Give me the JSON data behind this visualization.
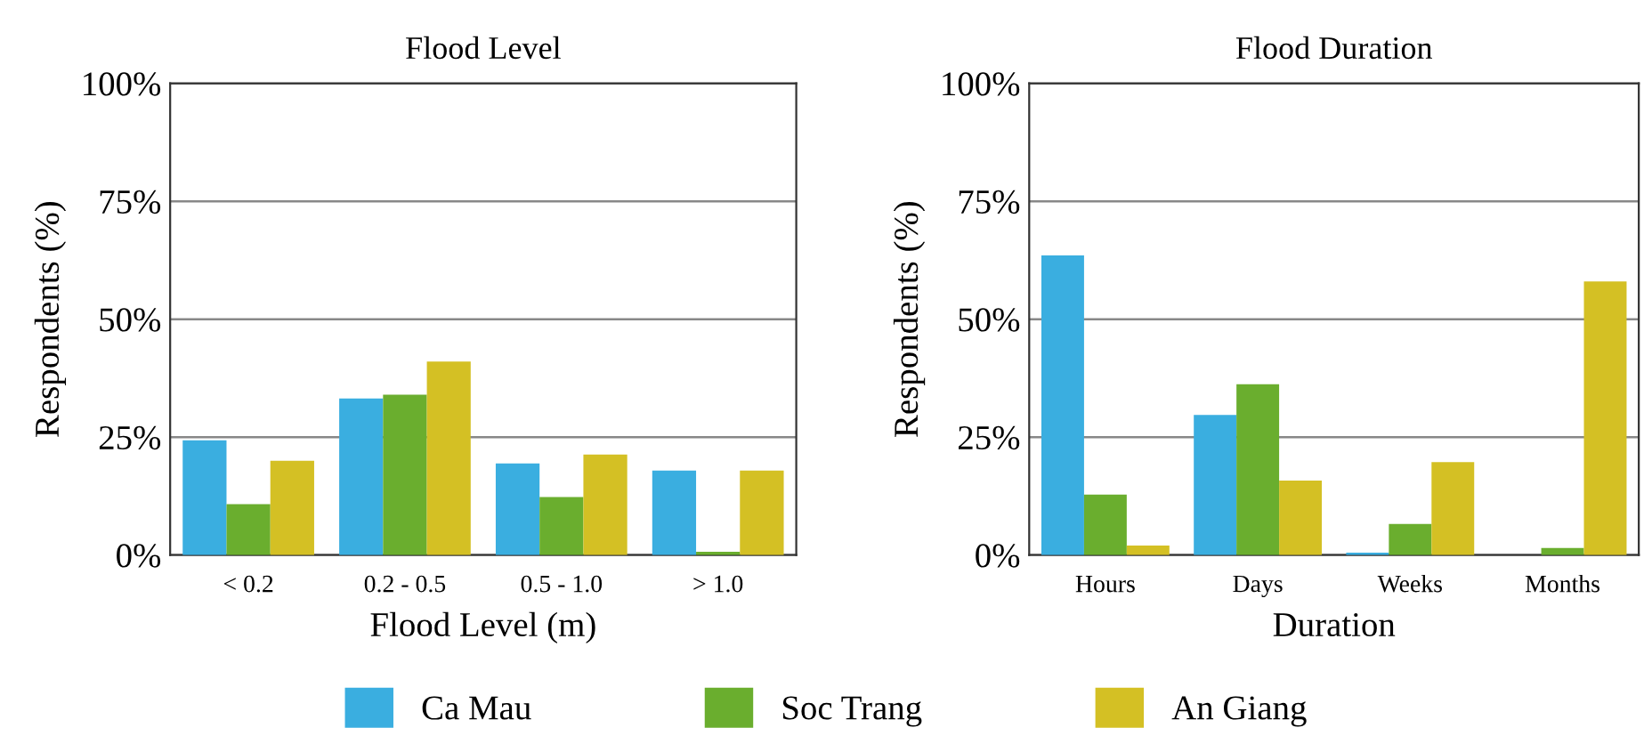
{
  "chart_data": [
    {
      "type": "bar",
      "title": "Flood Level",
      "xlabel": "Flood Level (m)",
      "ylabel": "Respondents (%)",
      "categories": [
        "< 0.2",
        "0.2 - 0.5",
        "0.5 - 1.0",
        "> 1.0"
      ],
      "series": [
        {
          "name": "Ca Mau",
          "color": "#3aaee0",
          "values": [
            24.3,
            33.2,
            19.4,
            17.9
          ]
        },
        {
          "name": "Soc Trang",
          "color": "#6aae2e",
          "values": [
            10.8,
            34,
            12.3,
            0.7
          ]
        },
        {
          "name": "An Giang",
          "color": "#d4c024",
          "values": [
            20,
            41,
            21.3,
            17.9
          ]
        }
      ],
      "ylim": [
        0,
        100
      ],
      "yticks": [
        {
          "value": 0,
          "label": "0%"
        },
        {
          "value": 25,
          "label": "25%"
        },
        {
          "value": 50,
          "label": "50%"
        },
        {
          "value": 75,
          "label": "75%"
        },
        {
          "value": 100,
          "label": "100%"
        }
      ],
      "grid": "y",
      "legend": "bottom"
    },
    {
      "type": "bar",
      "title": "Flood Duration",
      "xlabel": "Duration",
      "ylabel": "Respondents (%)",
      "categories": [
        "Hours",
        "Days",
        "Weeks",
        "Months"
      ],
      "series": [
        {
          "color": "#3aaee0",
          "values": [
            63.5,
            29.7,
            0.5,
            0
          ]
        },
        {
          "color": "#6aae2e",
          "values": [
            12.8,
            36.2,
            6.6,
            1.5
          ]
        },
        {
          "color": "#d4c024",
          "values": [
            2,
            15.8,
            19.7,
            58
          ]
        }
      ],
      "ylim": [
        0,
        100
      ],
      "yticks": [
        {
          "value": 0,
          "label": "0%"
        },
        {
          "value": 25,
          "label": "25%"
        },
        {
          "value": 50,
          "label": "50%"
        },
        {
          "value": 75,
          "label": "75%"
        },
        {
          "value": 100,
          "label": "100%"
        }
      ],
      "grid": "y"
    }
  ]
}
